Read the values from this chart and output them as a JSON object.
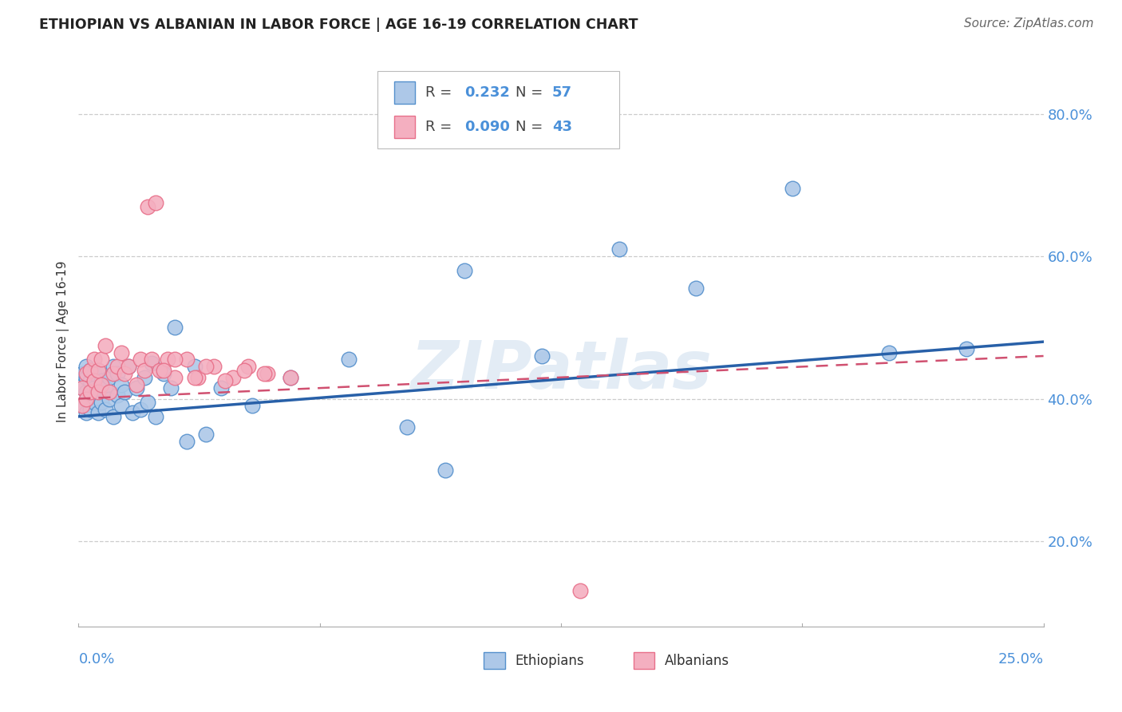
{
  "title": "ETHIOPIAN VS ALBANIAN IN LABOR FORCE | AGE 16-19 CORRELATION CHART",
  "source": "Source: ZipAtlas.com",
  "ylabel": "In Labor Force | Age 16-19",
  "yticks": [
    0.2,
    0.4,
    0.6,
    0.8
  ],
  "ytick_labels": [
    "20.0%",
    "40.0%",
    "60.0%",
    "80.0%"
  ],
  "xmin": 0.0,
  "xmax": 0.25,
  "ymin": 0.08,
  "ymax": 0.88,
  "blue_color": "#adc8e8",
  "pink_color": "#f4afc0",
  "blue_edge_color": "#5590cc",
  "pink_edge_color": "#e8708a",
  "blue_line_color": "#2860a8",
  "pink_line_color": "#d05070",
  "legend_label_1": "Ethiopians",
  "legend_label_2": "Albanians",
  "watermark": "ZIPatlas",
  "eth_x": [
    0.001,
    0.001,
    0.001,
    0.002,
    0.002,
    0.002,
    0.002,
    0.003,
    0.003,
    0.003,
    0.003,
    0.004,
    0.004,
    0.004,
    0.005,
    0.005,
    0.005,
    0.006,
    0.006,
    0.007,
    0.007,
    0.008,
    0.008,
    0.009,
    0.009,
    0.01,
    0.01,
    0.011,
    0.011,
    0.012,
    0.013,
    0.014,
    0.015,
    0.016,
    0.017,
    0.018,
    0.019,
    0.02,
    0.022,
    0.024,
    0.025,
    0.028,
    0.03,
    0.033,
    0.037,
    0.045,
    0.055,
    0.07,
    0.085,
    0.1,
    0.12,
    0.14,
    0.16,
    0.185,
    0.21,
    0.23,
    0.095
  ],
  "eth_y": [
    0.39,
    0.415,
    0.435,
    0.38,
    0.41,
    0.43,
    0.445,
    0.385,
    0.405,
    0.425,
    0.44,
    0.395,
    0.415,
    0.435,
    0.38,
    0.41,
    0.44,
    0.395,
    0.425,
    0.385,
    0.415,
    0.4,
    0.43,
    0.375,
    0.445,
    0.405,
    0.435,
    0.39,
    0.42,
    0.41,
    0.445,
    0.38,
    0.415,
    0.385,
    0.43,
    0.395,
    0.45,
    0.375,
    0.435,
    0.415,
    0.5,
    0.34,
    0.445,
    0.35,
    0.415,
    0.39,
    0.43,
    0.455,
    0.36,
    0.58,
    0.46,
    0.61,
    0.555,
    0.695,
    0.465,
    0.47,
    0.3
  ],
  "alb_x": [
    0.001,
    0.001,
    0.002,
    0.002,
    0.003,
    0.003,
    0.004,
    0.004,
    0.005,
    0.005,
    0.006,
    0.006,
    0.007,
    0.008,
    0.009,
    0.01,
    0.011,
    0.012,
    0.013,
    0.015,
    0.016,
    0.017,
    0.019,
    0.021,
    0.023,
    0.025,
    0.028,
    0.031,
    0.035,
    0.04,
    0.044,
    0.049,
    0.018,
    0.02,
    0.022,
    0.025,
    0.03,
    0.033,
    0.038,
    0.043,
    0.048,
    0.055,
    0.13
  ],
  "alb_y": [
    0.39,
    0.415,
    0.4,
    0.435,
    0.41,
    0.44,
    0.425,
    0.455,
    0.41,
    0.44,
    0.42,
    0.455,
    0.475,
    0.41,
    0.435,
    0.445,
    0.465,
    0.435,
    0.445,
    0.42,
    0.455,
    0.44,
    0.455,
    0.44,
    0.455,
    0.43,
    0.455,
    0.43,
    0.445,
    0.43,
    0.445,
    0.435,
    0.67,
    0.675,
    0.44,
    0.455,
    0.43,
    0.445,
    0.425,
    0.44,
    0.435,
    0.43,
    0.13
  ]
}
